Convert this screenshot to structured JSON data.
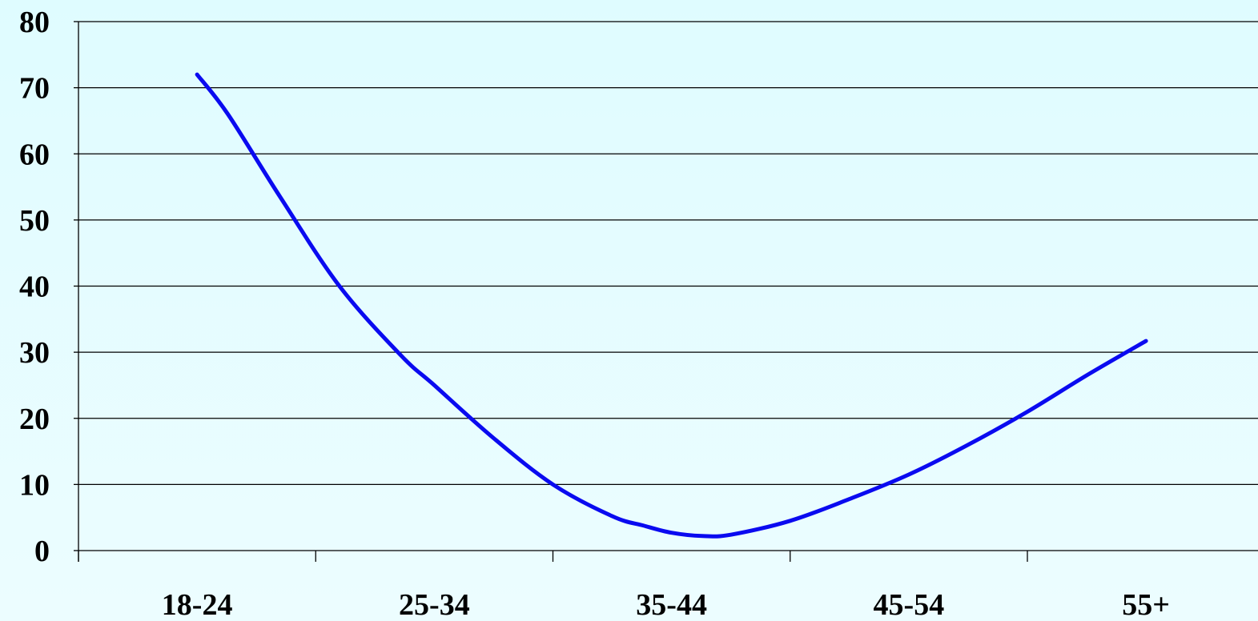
{
  "chart_data": {
    "type": "line",
    "title": "",
    "xlabel": "",
    "ylabel": "",
    "categories": [
      "18-24",
      "25-34",
      "35-44",
      "45-54",
      "55+"
    ],
    "yticks": [
      0,
      10,
      20,
      30,
      40,
      50,
      60,
      70,
      80
    ],
    "ylim": [
      0,
      80
    ],
    "grid": "horizontal",
    "legend": "none",
    "series": [
      {
        "color": "#0a0af0",
        "points": [
          {
            "x": 0.0,
            "y": 72
          },
          {
            "x": 0.13,
            "y": 66
          },
          {
            "x": 0.35,
            "y": 53.5
          },
          {
            "x": 0.6,
            "y": 40
          },
          {
            "x": 0.86,
            "y": 29.5
          },
          {
            "x": 1.0,
            "y": 25
          },
          {
            "x": 1.25,
            "y": 17
          },
          {
            "x": 1.5,
            "y": 10
          },
          {
            "x": 1.75,
            "y": 5.2
          },
          {
            "x": 1.88,
            "y": 3.8
          },
          {
            "x": 2.0,
            "y": 2.7
          },
          {
            "x": 2.13,
            "y": 2.2
          },
          {
            "x": 2.25,
            "y": 2.4
          },
          {
            "x": 2.5,
            "y": 4.5
          },
          {
            "x": 2.75,
            "y": 7.8
          },
          {
            "x": 3.0,
            "y": 11.5
          },
          {
            "x": 3.25,
            "y": 16
          },
          {
            "x": 3.5,
            "y": 21
          },
          {
            "x": 3.75,
            "y": 26.5
          },
          {
            "x": 4.0,
            "y": 31.7
          }
        ]
      }
    ]
  }
}
